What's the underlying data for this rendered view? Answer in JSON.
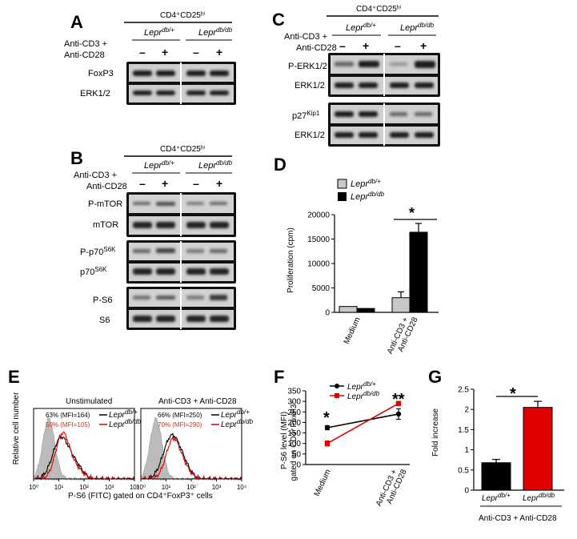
{
  "panels": {
    "A": {
      "letter": "A",
      "header": "CD4⁺CD25ʰⁱ",
      "stim_label_1": "Anti-CD3 +",
      "stim_label_2": "Anti-CD28",
      "group1": "Lepr",
      "group1_sup": "db/+",
      "group2": "Lepr",
      "group2_sup": "db/db",
      "lanes": [
        "–",
        "+",
        "–",
        "+"
      ],
      "blots": [
        "FoxP3",
        "ERK1/2"
      ]
    },
    "B": {
      "letter": "B",
      "header": "CD4⁺CD25ʰⁱ",
      "stim_label_1": "Anti-CD3 +",
      "stim_label_2": "Anti-CD28",
      "group1": "Lepr",
      "group1_sup": "db/+",
      "group2": "Lepr",
      "group2_sup": "db/db",
      "lanes": [
        "–",
        "+",
        "–",
        "+"
      ],
      "blots": [
        "P-mTOR",
        "mTOR",
        "P-p70",
        "p70",
        "P-S6",
        "S6"
      ],
      "sup_p70": "S6K"
    },
    "C": {
      "letter": "C",
      "header": "CD4⁺CD25ʰⁱ",
      "stim_label_1": "Anti-CD3 +",
      "stim_label_2": "Anti-CD28",
      "group1": "Lepr",
      "group1_sup": "db/+",
      "group2": "Lepr",
      "group2_sup": "db/db",
      "lanes": [
        "–",
        "+",
        "–",
        "+"
      ],
      "blots": [
        "P-ERK1/2",
        "ERK1/2",
        "p27",
        "ERK1/2"
      ],
      "sup_p27": "Kip1"
    },
    "D": {
      "letter": "D",
      "star": "*",
      "ylabel": "Proliferation (cpm)",
      "legend1": "Lepr",
      "legend1_sup": "db/+",
      "legend2": "Lepr",
      "legend2_sup": "db/db"
    },
    "E": {
      "letter": "E",
      "ylabel": "Relative cell number",
      "xlabel": "P-S6 (FITC) gated on CD4⁺FoxP3⁺ cells",
      "sub1_title": "Unstimulated",
      "sub2_title": "Anti-CD3 + Anti-CD28",
      "sub1_line1": "63% (MFI=164)",
      "sub1_line2": "50% (MFI=105)",
      "sub2_line1": "66% (MFI=250)",
      "sub2_line2": "70% (MFI=290)",
      "leg1": "Lepr",
      "leg1_sup": "db/+",
      "leg2": "Lepr",
      "leg2_sup": "db/db",
      "xticks": [
        "10⁰",
        "10¹",
        "10²",
        "10³",
        "10⁴"
      ]
    },
    "F": {
      "letter": "F",
      "ylabel1": "P-S6 level (MFI)",
      "ylabel2": "gated on CD4⁺FoxP3⁻",
      "star1": "*",
      "star2": "**",
      "leg1": "Lepr",
      "leg1_sup": "db/+",
      "leg2": "Lepr",
      "leg2_sup": "db/db"
    },
    "G": {
      "letter": "G",
      "star": "*",
      "ylabel": "Fold increase",
      "xlabel": "Anti-CD3 + Anti-CD28",
      "cat1": "Lepr",
      "cat1_sup": "db/+",
      "cat2": "Lepr",
      "cat2_sup": "db/db"
    }
  },
  "chart_data": [
    {
      "id": "D",
      "type": "bar",
      "categories": [
        "Medium",
        "Anti-CD3 + Anti-CD28"
      ],
      "series": [
        {
          "name": "Leprdb/+",
          "values": [
            1200,
            3000
          ],
          "errors": [
            0,
            1200
          ],
          "color": "#c8c8c8"
        },
        {
          "name": "Leprdb/db",
          "values": [
            800,
            16400
          ],
          "errors": [
            0,
            1800
          ],
          "color": "#000000"
        }
      ],
      "ylabel": "Proliferation (cpm)",
      "ylim": [
        0,
        20000
      ],
      "yticks": [
        0,
        5000,
        10000,
        15000,
        20000
      ],
      "legend": "top-left"
    },
    {
      "id": "F",
      "type": "line",
      "categories": [
        "Medium",
        "Anti-CD3 + Anti-CD28"
      ],
      "series": [
        {
          "name": "Leprdb/+",
          "values": [
            175,
            240
          ],
          "errors": [
            10,
            25
          ],
          "color": "#000000"
        },
        {
          "name": "Leprdb/db",
          "values": [
            100,
            290
          ],
          "errors": [
            12,
            8
          ],
          "color": "#e00000"
        }
      ],
      "ylabel": "P-S6 level (MFI) gated on CD4+FoxP3-",
      "ylim": [
        0,
        350
      ],
      "yticks": [
        0,
        50,
        100,
        150,
        200,
        250,
        300,
        350
      ],
      "legend": "top-left"
    },
    {
      "id": "G",
      "type": "bar",
      "categories": [
        "Leprdb/+",
        "Leprdb/db"
      ],
      "values": [
        0.68,
        2.05
      ],
      "errors": [
        0.08,
        0.15
      ],
      "colors": [
        "#000000",
        "#e00000"
      ],
      "ylabel": "Fold increase",
      "xlabel": "Anti-CD3 + Anti-CD28",
      "ylim": [
        0,
        2.5
      ],
      "yticks": [
        "0",
        "0.5",
        "1",
        "1.5",
        "2",
        "2.5"
      ]
    },
    {
      "id": "E",
      "type": "area",
      "subplots": [
        "Unstimulated",
        "Anti-CD3 + Anti-CD28"
      ],
      "xscale": "log",
      "xlim": [
        1,
        10000
      ],
      "xlabel": "P-S6 (FITC) gated on CD4+FoxP3+ cells",
      "ylabel": "Relative cell number",
      "series": [
        {
          "name": "isotype",
          "color": "#bbbbbb"
        },
        {
          "name": "Leprdb/+",
          "color": "#000000"
        },
        {
          "name": "Leprdb/db",
          "color": "#e00000"
        }
      ]
    }
  ]
}
